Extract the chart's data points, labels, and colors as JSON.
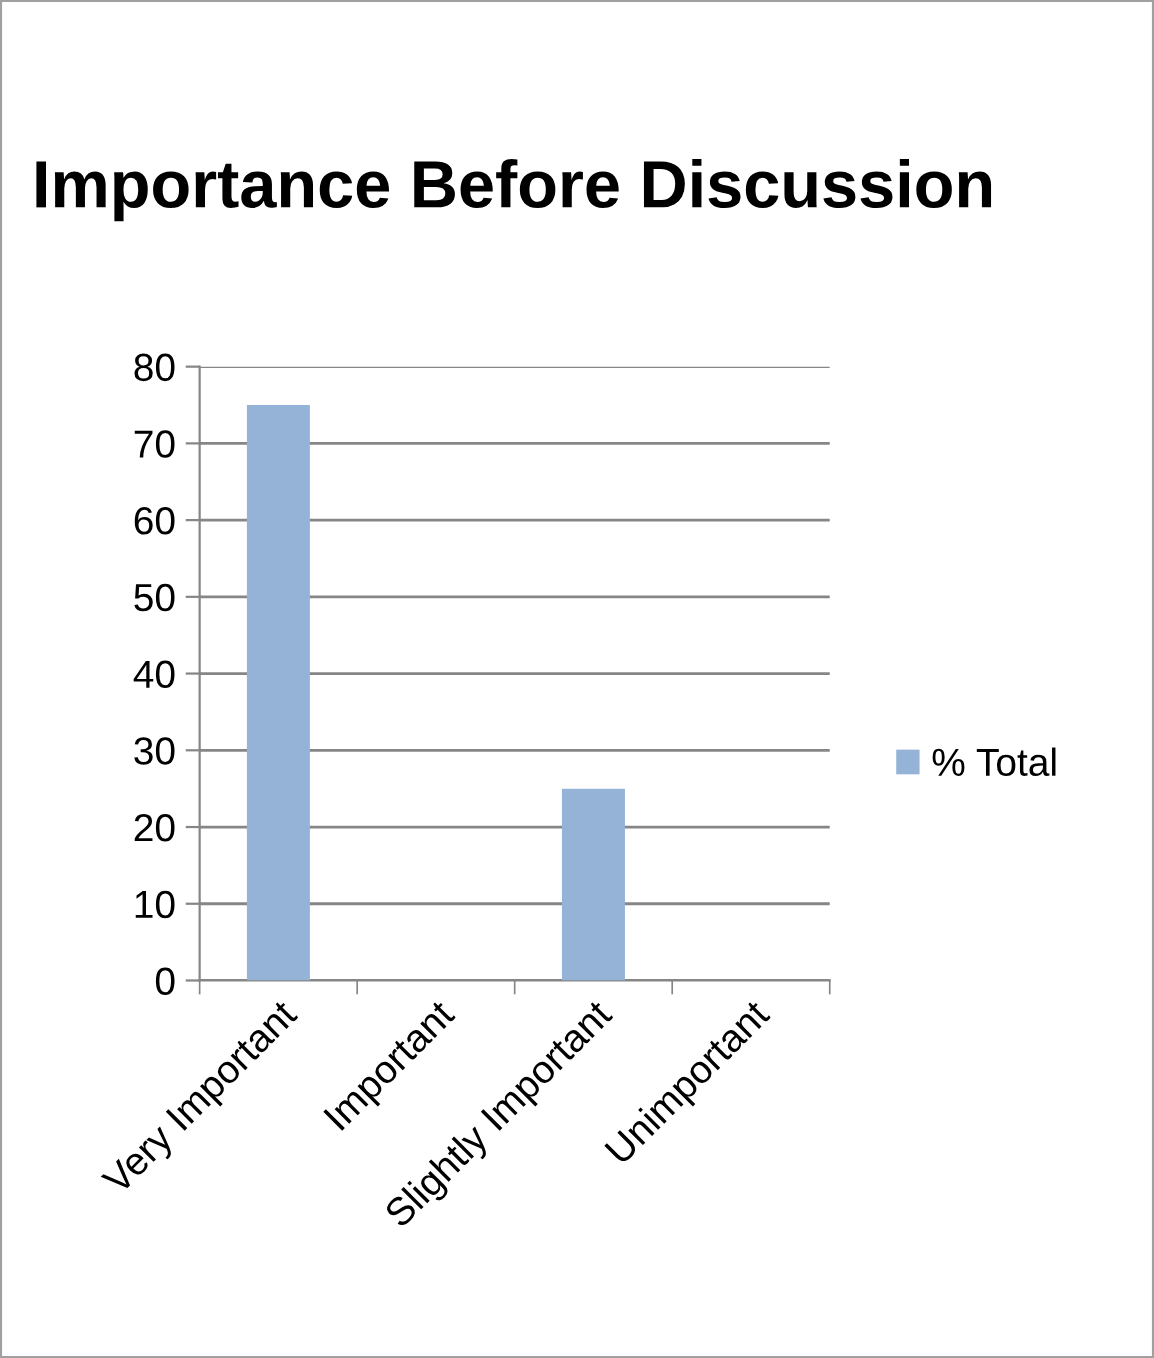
{
  "chart_data": {
    "type": "bar",
    "title": "Importance Before Discussion",
    "categories": [
      "Very Important",
      "Important",
      "Slightly Important",
      "Unimportant"
    ],
    "series": [
      {
        "name": "% Total",
        "color": "#95b3d7",
        "values": [
          75,
          0,
          25,
          0
        ]
      }
    ],
    "ylim": [
      0,
      80
    ],
    "yticks": [
      0,
      10,
      20,
      30,
      40,
      50,
      60,
      70,
      80
    ],
    "grid": "y",
    "legend": "right"
  }
}
